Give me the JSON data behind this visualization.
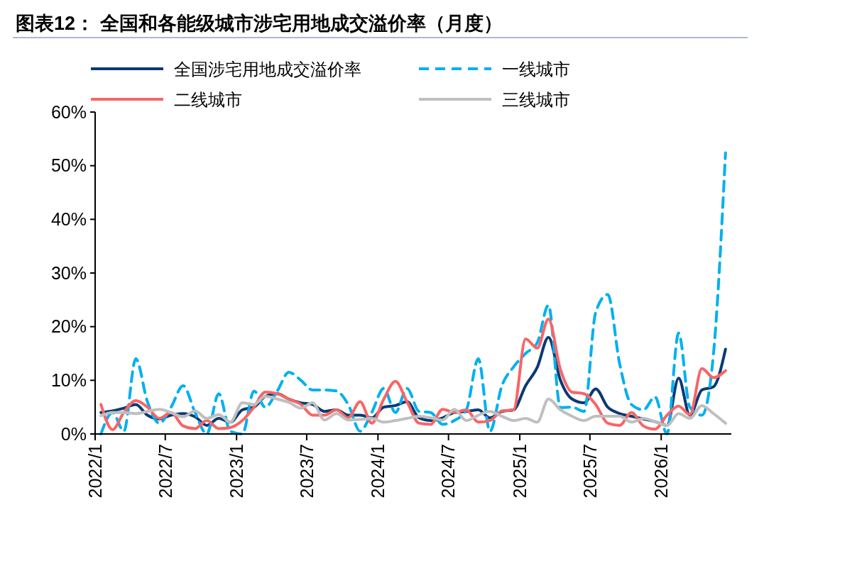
{
  "chart_data": {
    "type": "line",
    "title": "图表12： 全国和各能级城市涉宅用地成交溢价率（月度）",
    "x": [
      "2022-01-16",
      "2022-02-15",
      "2022-03-16",
      "2022-04-16",
      "2022-05-16",
      "2022-06-16",
      "2022-07-16",
      "2022-08-16",
      "2022-09-16",
      "2022-10-16",
      "2022-11-16",
      "2022-12-16",
      "2023-01-16",
      "2023-02-15",
      "2023-03-16",
      "2023-04-16",
      "2023-05-16",
      "2023-06-16",
      "2023-07-16",
      "2023-08-16",
      "2023-09-16",
      "2023-10-16",
      "2023-11-16",
      "2023-12-16",
      "2024-01-16",
      "2024-02-15",
      "2024-03-16",
      "2024-04-16",
      "2024-05-16",
      "2024-06-16",
      "2024-07-16",
      "2024-08-16",
      "2024-09-16",
      "2024-10-16",
      "2024-11-16",
      "2024-12-16",
      "2025-01-16",
      "2025-02-15",
      "2025-03-16",
      "2025-04-16",
      "2025-05-16",
      "2025-06-16",
      "2025-07-16",
      "2025-08-16",
      "2025-09-16",
      "2025-10-16",
      "2025-11-16",
      "2025-12-16",
      "2026-01-16",
      "2026-02-15",
      "2026-03-16",
      "2026-04-16",
      "2026-05-16",
      "2026-06-16"
    ],
    "series": [
      {
        "name": "全国涉宅用地成交溢价率",
        "color": "#0b3a73",
        "line_style": "solid",
        "values": [
          4,
          4.3,
          4.8,
          5.5,
          3.5,
          2.8,
          3.5,
          3.8,
          3.2,
          1.6,
          2.9,
          2.2,
          4.5,
          5,
          7,
          7.5,
          6.5,
          5.8,
          5.5,
          4.2,
          4.5,
          3.5,
          3.5,
          3,
          5,
          5.3,
          6,
          3,
          2.5,
          3,
          4,
          4.2,
          4.5,
          3,
          4.2,
          4.5,
          9,
          12.4,
          18,
          10,
          6.5,
          5.8,
          8.4,
          5,
          3.8,
          3.3,
          2.8,
          2.3,
          1.6,
          10.4,
          3.5,
          8.2,
          8.8,
          15.8
        ]
      },
      {
        "name": "一线城市",
        "color": "#00b0f0",
        "line_style": "dashed",
        "values": [
          0,
          4,
          0.5,
          14,
          6,
          2,
          5,
          9,
          4,
          0,
          7.5,
          0.5,
          0,
          8,
          5,
          8,
          11.5,
          10,
          8.2,
          8.2,
          8,
          5.5,
          0.5,
          4,
          8.5,
          4,
          8.5,
          4.2,
          4,
          1.8,
          2.5,
          4.5,
          14,
          0.5,
          9,
          12.5,
          15,
          17,
          24,
          4.9,
          5,
          4.2,
          22.7,
          26,
          13,
          5.5,
          4.5,
          6.9,
          0,
          18.8,
          5,
          3.5,
          15,
          52.4
        ]
      },
      {
        "name": "二线城市",
        "color": "#f86567",
        "line_style": "solid",
        "values": [
          5.5,
          0.8,
          4,
          6.2,
          5,
          2.9,
          4,
          1.5,
          1,
          2.5,
          1,
          1.2,
          2.5,
          5,
          7.8,
          7.5,
          6.5,
          5.5,
          3.5,
          3.5,
          4.5,
          3,
          6,
          2,
          6.5,
          9.8,
          6,
          2,
          1.8,
          4.6,
          4,
          4.5,
          2.2,
          2.5,
          4.3,
          4.5,
          17.7,
          16,
          21.4,
          12,
          7.8,
          7.5,
          5.5,
          2,
          1.6,
          4,
          1.5,
          0.9,
          3.5,
          5.2,
          3.6,
          12.2,
          10.5,
          11.8
        ]
      },
      {
        "name": "三线城市",
        "color": "#bfbfbf",
        "line_style": "solid",
        "values": [
          3.4,
          4,
          4,
          3.8,
          4.2,
          4.6,
          4,
          3.2,
          4.3,
          2.9,
          3.6,
          2.2,
          5.8,
          5.5,
          7,
          6.5,
          5.9,
          4.8,
          5.8,
          2.6,
          3.8,
          2.6,
          2.7,
          2.9,
          2.2,
          2.5,
          2.9,
          3.3,
          3,
          2.6,
          4.6,
          2.5,
          3.5,
          4.2,
          3.3,
          2.5,
          2.9,
          2.2,
          6.5,
          4.5,
          3.3,
          2.5,
          3.3,
          3.3,
          3.3,
          2.2,
          2.9,
          2.3,
          1.6,
          3.8,
          2.9,
          5.3,
          3.8,
          2
        ]
      }
    ],
    "xlim": [
      "2022-01",
      "2026-07"
    ],
    "xticks": [
      {
        "value": "2022-01",
        "label": "2022/1"
      },
      {
        "value": "2022-07",
        "label": "2022/7"
      },
      {
        "value": "2023-01",
        "label": "2023/1"
      },
      {
        "value": "2023-07",
        "label": "2023/7"
      },
      {
        "value": "2024-01",
        "label": "2024/1"
      },
      {
        "value": "2024-07",
        "label": "2024/7"
      },
      {
        "value": "2025-01",
        "label": "2025/1"
      },
      {
        "value": "2025-07",
        "label": "2025/7"
      },
      {
        "value": "2026-01",
        "label": "2026/1"
      }
    ],
    "ylim": [
      0,
      60
    ],
    "yticks": [
      {
        "value": 0,
        "label": "0%"
      },
      {
        "value": 10,
        "label": "10%"
      },
      {
        "value": 20,
        "label": "20%"
      },
      {
        "value": 30,
        "label": "30%"
      },
      {
        "value": 40,
        "label": "40%"
      },
      {
        "value": 50,
        "label": "50%"
      },
      {
        "value": 60,
        "label": "60%"
      }
    ],
    "legend": "top",
    "marker": "none",
    "grid": false
  }
}
